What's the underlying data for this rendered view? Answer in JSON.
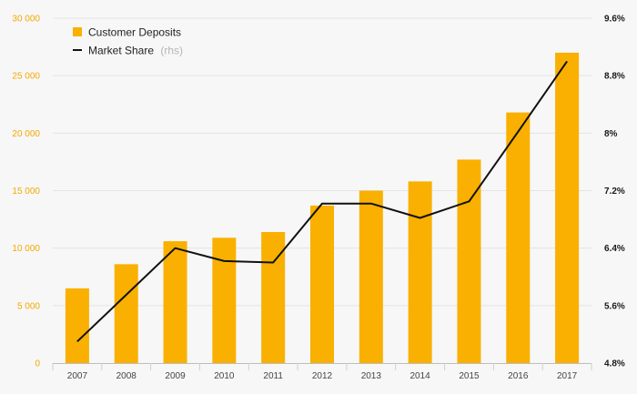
{
  "chart_data": {
    "type": "bar",
    "categories": [
      "2007",
      "2008",
      "2009",
      "2010",
      "2011",
      "2012",
      "2013",
      "2014",
      "2015",
      "2016",
      "2017"
    ],
    "series": [
      {
        "name": "Customer Deposits",
        "type": "bar",
        "axis": "left",
        "color": "#f9b000",
        "values": [
          6500,
          8600,
          10600,
          10900,
          11400,
          13700,
          15000,
          15800,
          17700,
          21800,
          27000
        ]
      },
      {
        "name": "Market Share",
        "name_suffix": "(rhs)",
        "type": "line",
        "axis": "right",
        "color": "#111111",
        "values": [
          5.1,
          5.75,
          6.4,
          6.22,
          6.2,
          7.02,
          7.02,
          6.82,
          7.05,
          8.02,
          9.0
        ]
      }
    ],
    "left_axis": {
      "ylim": [
        0,
        30000
      ],
      "ticks": [
        0,
        5000,
        10000,
        15000,
        20000,
        25000,
        30000
      ],
      "tick_labels": [
        "0",
        "5 000",
        "10 000",
        "15 000",
        "20 000",
        "25 000",
        "30 000"
      ],
      "tick_color": "#f2a900"
    },
    "right_axis": {
      "ylim": [
        4.8,
        9.6
      ],
      "ticks": [
        4.8,
        5.6,
        6.4,
        7.2,
        8,
        8.8,
        9.6
      ],
      "tick_labels": [
        "4.8%",
        "5.6%",
        "6.4%",
        "7.2%",
        "8%",
        "8.8%",
        "9.6%"
      ]
    },
    "grid": true,
    "legend": "top-left"
  }
}
